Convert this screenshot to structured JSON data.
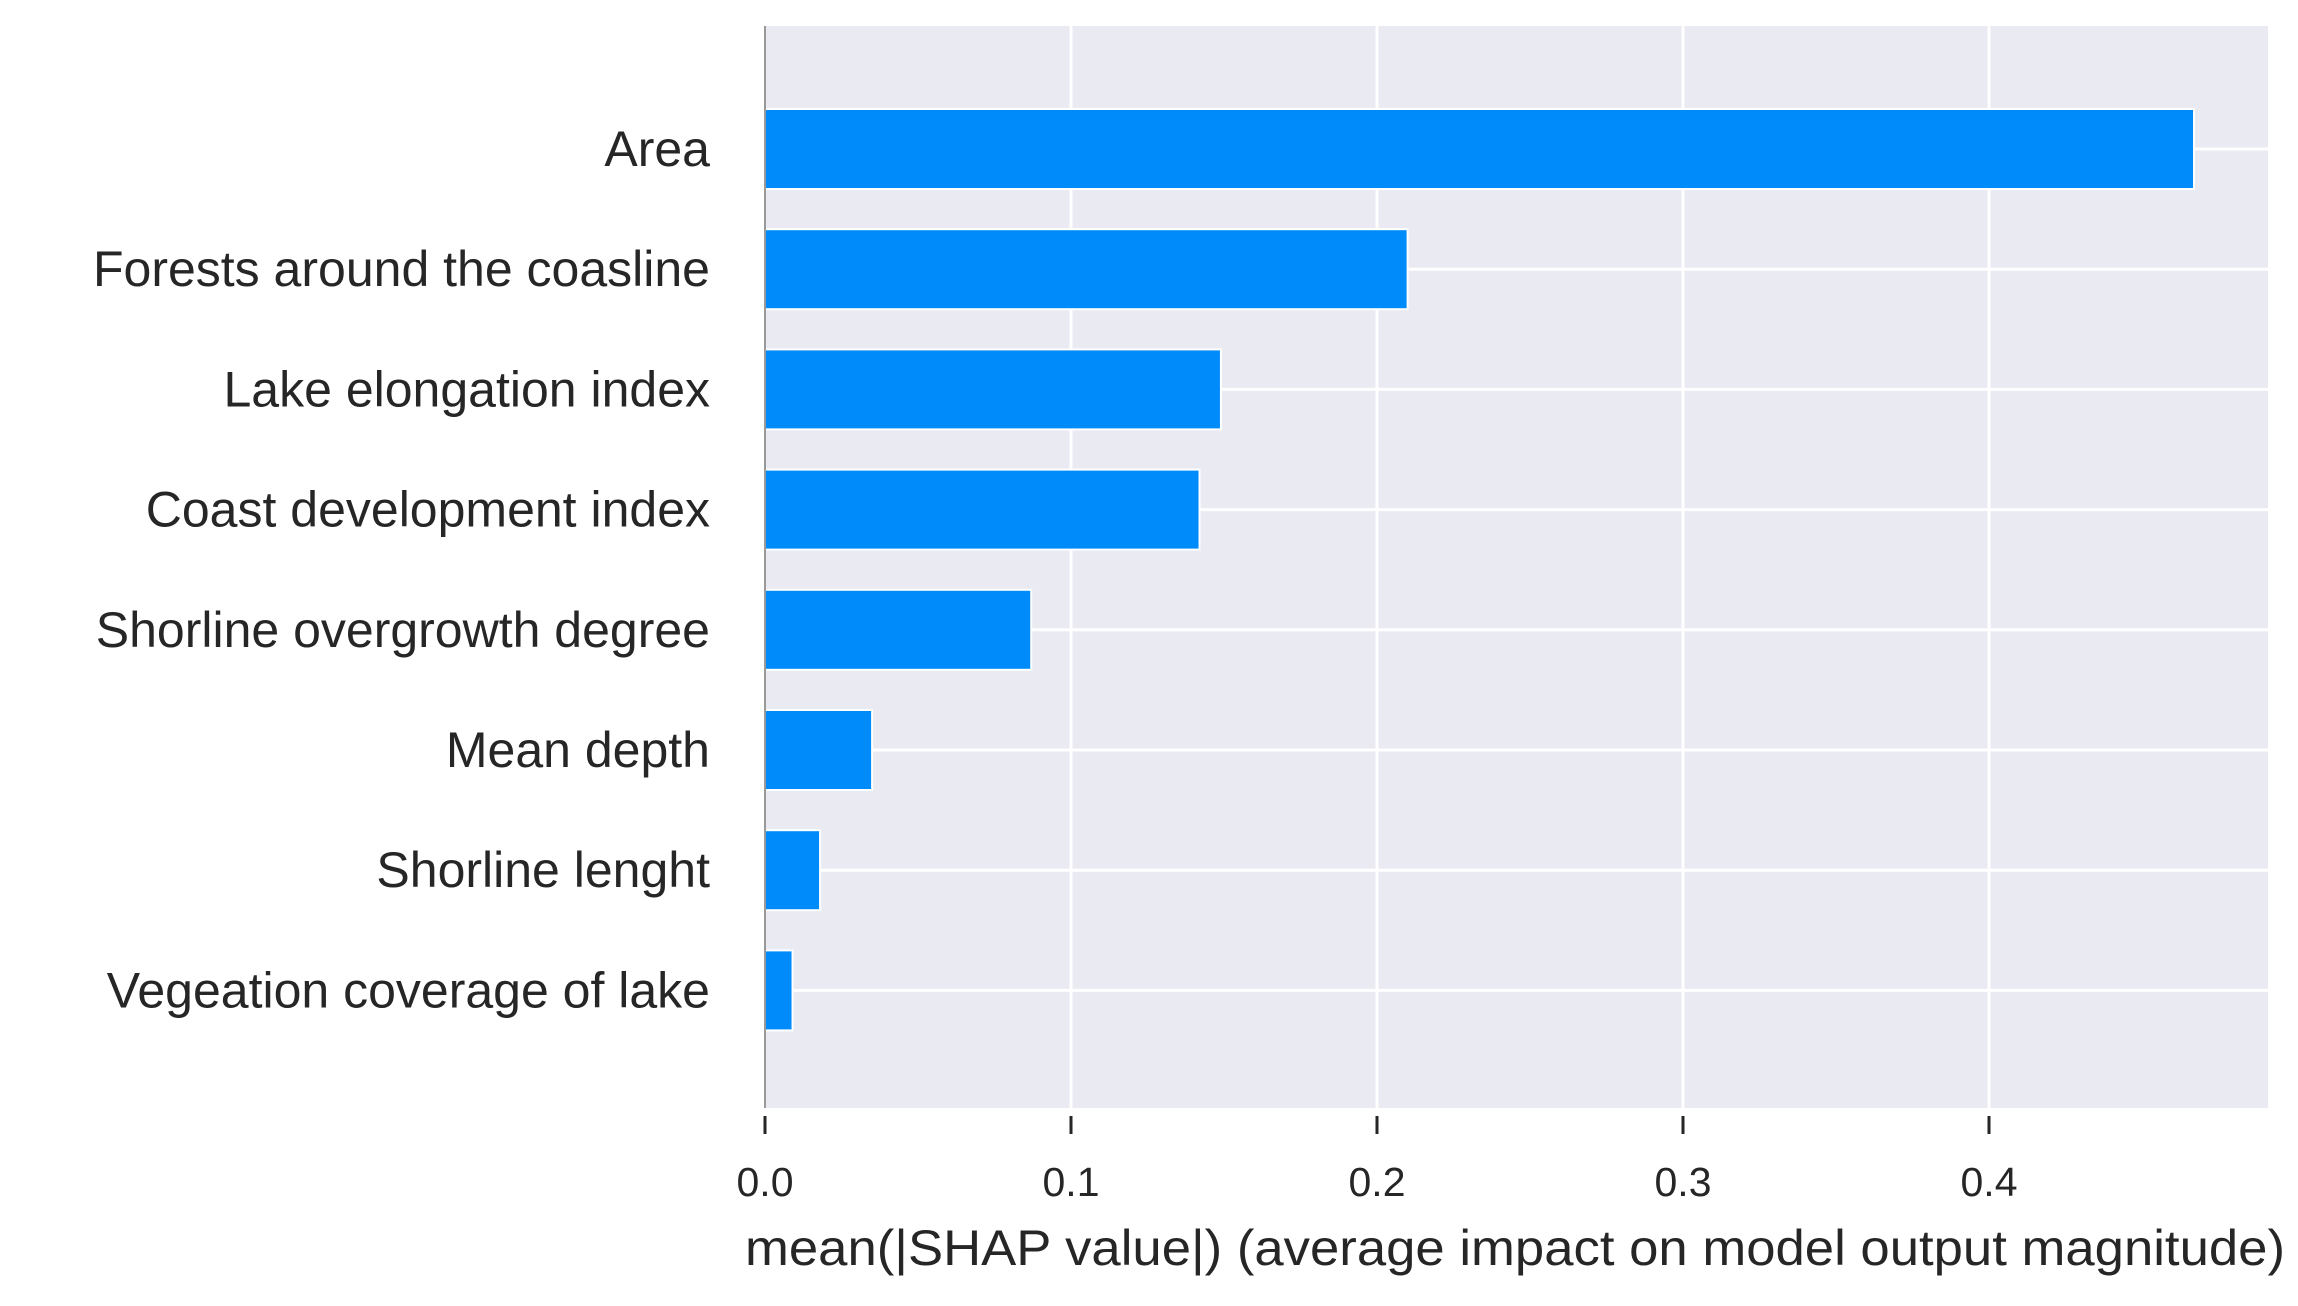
{
  "chart_data": {
    "type": "bar",
    "orientation": "horizontal",
    "categories": [
      "Area",
      "Forests around the coasline",
      "Lake elongation index",
      "Coast development index",
      "Shorline overgrowth degree ",
      "Mean depth",
      "Shorline lenght",
      "Vegeation coverage of lake"
    ],
    "values": [
      0.467,
      0.21,
      0.149,
      0.142,
      0.087,
      0.035,
      0.018,
      0.009
    ],
    "title": "",
    "xlabel": "mean(|SHAP value|) (average impact on model output magnitude)",
    "ylabel": "",
    "xlim": [
      0,
      0.49
    ],
    "xticks": [
      "0.0",
      "0.1",
      "0.2",
      "0.3",
      "0.4"
    ],
    "grid": true,
    "legend": "none",
    "colors": {
      "bar": "#008bfb",
      "plot_background": "#eaeaf2",
      "grid": "#ffffff",
      "text": "#262626",
      "axis_line": "#999999"
    }
  }
}
